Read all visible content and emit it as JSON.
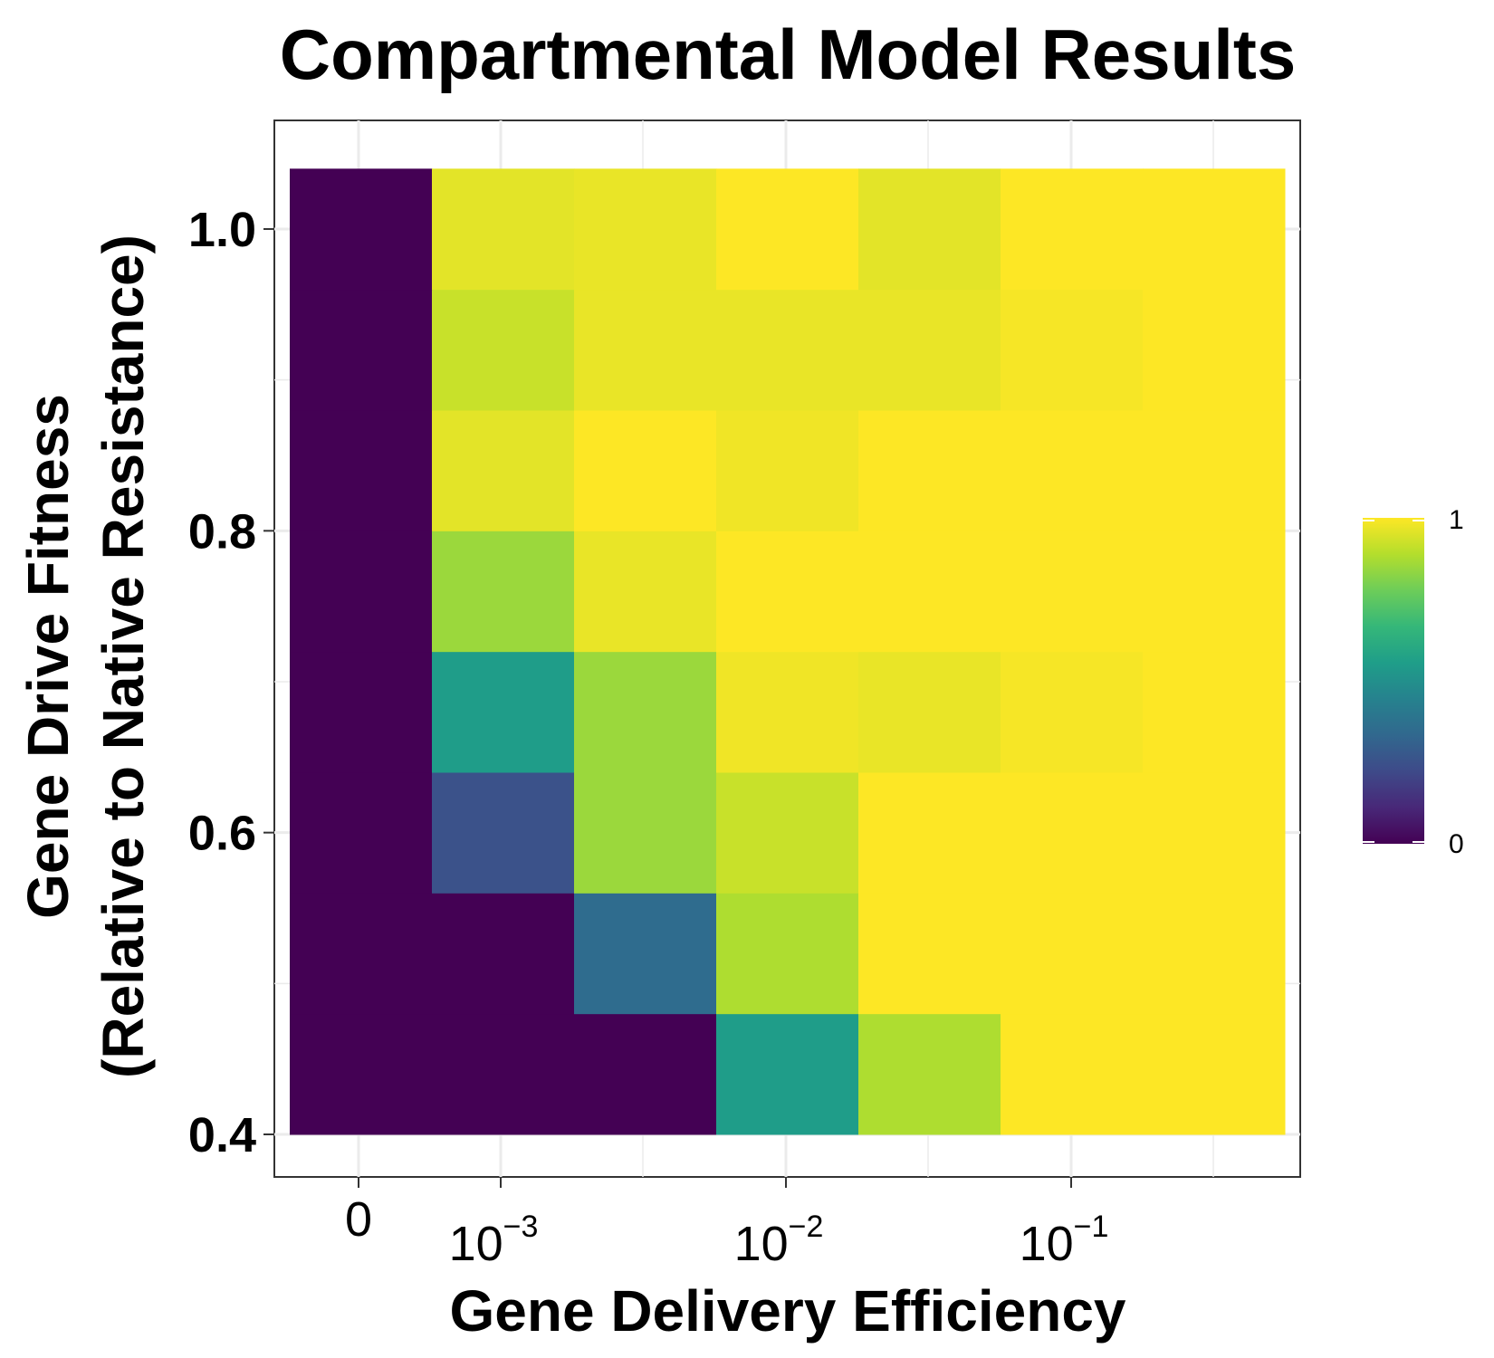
{
  "chart_data": {
    "type": "heatmap",
    "title": "Compartmental Model Results",
    "xlabel": "Gene Delivery Efficiency",
    "ylabel_lines": [
      "Gene Drive Fitness",
      "(Relative to Native Resistance)"
    ],
    "x_tick_labels": [
      {
        "base": "0",
        "exp": ""
      },
      {
        "base": "10",
        "exp": "−3"
      },
      {
        "base": "10",
        "exp": "−2"
      },
      {
        "base": "10",
        "exp": "−1"
      }
    ],
    "y_tick_labels": [
      "0.4",
      "0.6",
      "0.8",
      "1.0"
    ],
    "y_ticks": [
      0.4,
      0.6,
      0.8,
      1.0
    ],
    "y_range": [
      0.4,
      1.04
    ],
    "rows_y": [
      0.44,
      0.52,
      0.6,
      0.68,
      0.76,
      0.84,
      0.92,
      1.0
    ],
    "columns": 7,
    "values": [
      [
        0.0,
        0.0,
        0.0,
        0.55,
        0.88,
        1.0,
        1.0
      ],
      [
        0.0,
        0.0,
        0.35,
        0.88,
        1.0,
        1.0,
        1.0
      ],
      [
        0.0,
        0.25,
        0.85,
        0.92,
        1.0,
        1.0,
        1.0
      ],
      [
        0.0,
        0.55,
        0.85,
        0.98,
        0.97,
        0.99,
        1.0
      ],
      [
        0.0,
        0.85,
        0.97,
        1.0,
        1.0,
        1.0,
        1.0
      ],
      [
        0.0,
        0.96,
        1.0,
        0.98,
        1.0,
        1.0,
        1.0
      ],
      [
        0.0,
        0.92,
        0.97,
        0.97,
        0.97,
        0.99,
        1.0
      ],
      [
        0.0,
        0.96,
        0.97,
        1.0,
        0.96,
        1.0,
        1.0
      ]
    ],
    "legend": {
      "min_label": "0",
      "max_label": "1",
      "position": "right"
    },
    "colormap": "viridis",
    "colors": [
      "#440154",
      "#482878",
      "#3e4a89",
      "#31688e",
      "#26828e",
      "#1f9e89",
      "#35b779",
      "#6dcd59",
      "#b4de2c",
      "#fde725"
    ],
    "grid": true
  }
}
